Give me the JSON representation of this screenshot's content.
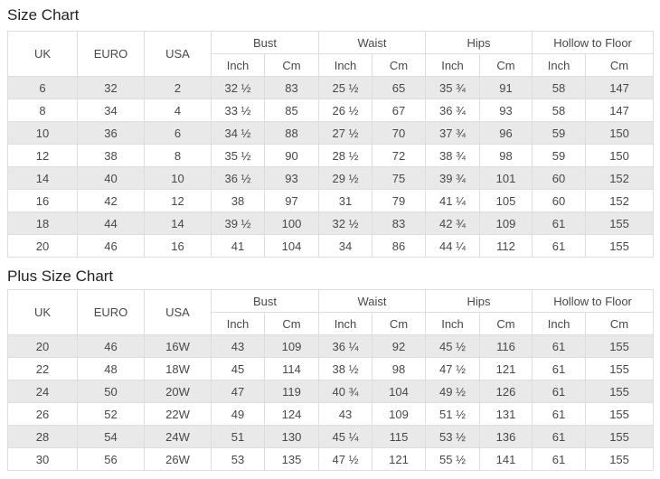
{
  "colors": {
    "stripe": "#e9e9e9",
    "border": "#dddddd",
    "text": "#484848",
    "title": "#222222",
    "background": "#ffffff"
  },
  "sections": [
    {
      "title": "Size Chart",
      "columns": [
        "UK",
        "EURO",
        "USA"
      ],
      "groups": [
        {
          "label": "Bust",
          "sub": [
            "Inch",
            "Cm"
          ]
        },
        {
          "label": "Waist",
          "sub": [
            "Inch",
            "Cm"
          ]
        },
        {
          "label": "Hips",
          "sub": [
            "Inch",
            "Cm"
          ]
        },
        {
          "label": "Hollow to Floor",
          "sub": [
            "Inch",
            "Cm"
          ]
        }
      ],
      "rows": [
        [
          "6",
          "32",
          "2",
          "32 ½",
          "83",
          "25 ½",
          "65",
          "35 ¾",
          "91",
          "58",
          "147"
        ],
        [
          "8",
          "34",
          "4",
          "33 ½",
          "85",
          "26 ½",
          "67",
          "36 ¾",
          "93",
          "58",
          "147"
        ],
        [
          "10",
          "36",
          "6",
          "34 ½",
          "88",
          "27 ½",
          "70",
          "37 ¾",
          "96",
          "59",
          "150"
        ],
        [
          "12",
          "38",
          "8",
          "35 ½",
          "90",
          "28 ½",
          "72",
          "38 ¾",
          "98",
          "59",
          "150"
        ],
        [
          "14",
          "40",
          "10",
          "36 ½",
          "93",
          "29 ½",
          "75",
          "39 ¾",
          "101",
          "60",
          "152"
        ],
        [
          "16",
          "42",
          "12",
          "38",
          "97",
          "31",
          "79",
          "41 ¼",
          "105",
          "60",
          "152"
        ],
        [
          "18",
          "44",
          "14",
          "39 ½",
          "100",
          "32 ½",
          "83",
          "42 ¾",
          "109",
          "61",
          "155"
        ],
        [
          "20",
          "46",
          "16",
          "41",
          "104",
          "34",
          "86",
          "44 ¼",
          "112",
          "61",
          "155"
        ]
      ]
    },
    {
      "title": "Plus Size Chart",
      "columns": [
        "UK",
        "EURO",
        "USA"
      ],
      "groups": [
        {
          "label": "Bust",
          "sub": [
            "Inch",
            "Cm"
          ]
        },
        {
          "label": "Waist",
          "sub": [
            "Inch",
            "Cm"
          ]
        },
        {
          "label": "Hips",
          "sub": [
            "Inch",
            "Cm"
          ]
        },
        {
          "label": "Hollow to Floor",
          "sub": [
            "Inch",
            "Cm"
          ]
        }
      ],
      "rows": [
        [
          "20",
          "46",
          "16W",
          "43",
          "109",
          "36 ¼",
          "92",
          "45 ½",
          "116",
          "61",
          "155"
        ],
        [
          "22",
          "48",
          "18W",
          "45",
          "114",
          "38 ½",
          "98",
          "47 ½",
          "121",
          "61",
          "155"
        ],
        [
          "24",
          "50",
          "20W",
          "47",
          "119",
          "40 ¾",
          "104",
          "49 ½",
          "126",
          "61",
          "155"
        ],
        [
          "26",
          "52",
          "22W",
          "49",
          "124",
          "43",
          "109",
          "51 ½",
          "131",
          "61",
          "155"
        ],
        [
          "28",
          "54",
          "24W",
          "51",
          "130",
          "45 ¼",
          "115",
          "53 ½",
          "136",
          "61",
          "155"
        ],
        [
          "30",
          "56",
          "26W",
          "53",
          "135",
          "47 ½",
          "121",
          "55 ½",
          "141",
          "61",
          "155"
        ]
      ]
    }
  ]
}
